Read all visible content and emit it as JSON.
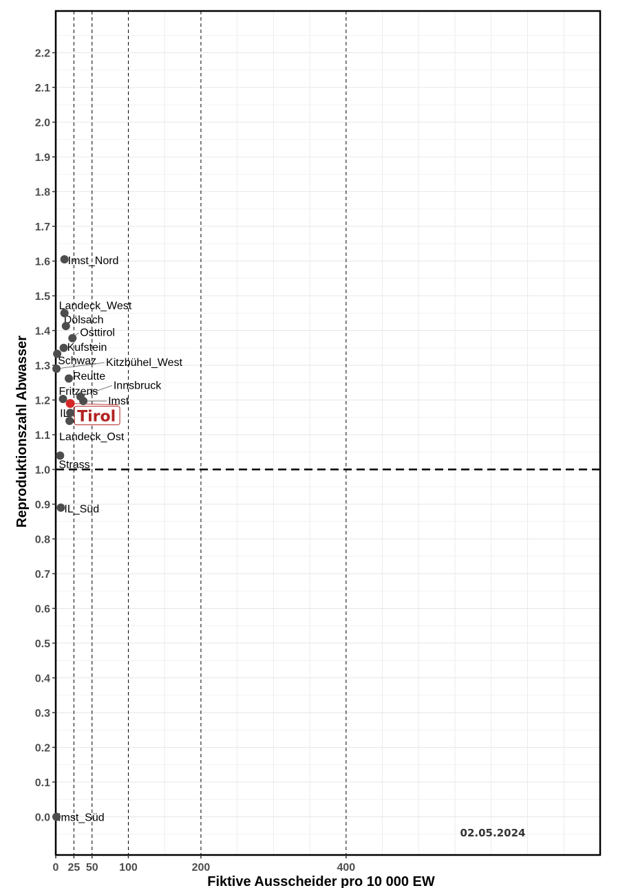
{
  "chart_data": {
    "type": "scatter",
    "xlabel": "Fiktive Ausscheider pro 10 000 EW",
    "ylabel": "Reproduktionszahl Abwasser",
    "date": "02.05.2024",
    "xlim": [
      0,
      750
    ],
    "ylim": [
      -0.11,
      2.32
    ],
    "x_ticks": [
      0,
      25,
      50,
      100,
      200,
      400
    ],
    "y_ticks": [
      0.0,
      0.1,
      0.2,
      0.3,
      0.4,
      0.5,
      0.6,
      0.7,
      0.8,
      0.9,
      1.0,
      1.1,
      1.2,
      1.3,
      1.4,
      1.5,
      1.6,
      1.7,
      1.8,
      1.9,
      2.0,
      2.1,
      2.2
    ],
    "x_minor_ticks": [
      50,
      150,
      250,
      300,
      350,
      450,
      500,
      550,
      600,
      650,
      700
    ],
    "vertical_reference_lines": [
      25,
      50,
      100,
      200,
      400
    ],
    "horizontal_reference_line": 1.0,
    "grid": true,
    "points": [
      {
        "label": "Imst_Nord",
        "x": 12,
        "y": 1.605
      },
      {
        "label": "Landeck_West",
        "x": 12,
        "y": 1.45
      },
      {
        "label": "Dölsach",
        "x": 14,
        "y": 1.413
      },
      {
        "label": "Osttirol",
        "x": 23,
        "y": 1.378
      },
      {
        "label": "Kufstein",
        "x": 11,
        "y": 1.35
      },
      {
        "label": "Schwaz",
        "x": 2,
        "y": 1.333
      },
      {
        "label": "Kitzbühel_West",
        "x": 1,
        "y": 1.29
      },
      {
        "label": "Reutte",
        "x": 18,
        "y": 1.262
      },
      {
        "label": "Innsbruck",
        "x": 34,
        "y": 1.21
      },
      {
        "label": "Fritzens",
        "x": 10,
        "y": 1.203
      },
      {
        "label": "Imst",
        "x": 38,
        "y": 1.197
      },
      {
        "label": "IL",
        "x": 20,
        "y": 1.163
      },
      {
        "label": "Landeck_Ost",
        "x": 19,
        "y": 1.14
      },
      {
        "label": "Strass",
        "x": 6,
        "y": 1.04
      },
      {
        "label": "IL_Süd",
        "x": 7,
        "y": 0.89
      },
      {
        "label": "Imst_Süd",
        "x": 1,
        "y": 0.0
      }
    ],
    "highlight": {
      "label": "Tirol",
      "x": 20,
      "y": 1.19,
      "color": "#d62728"
    },
    "point_color": "#4d4d4d"
  }
}
